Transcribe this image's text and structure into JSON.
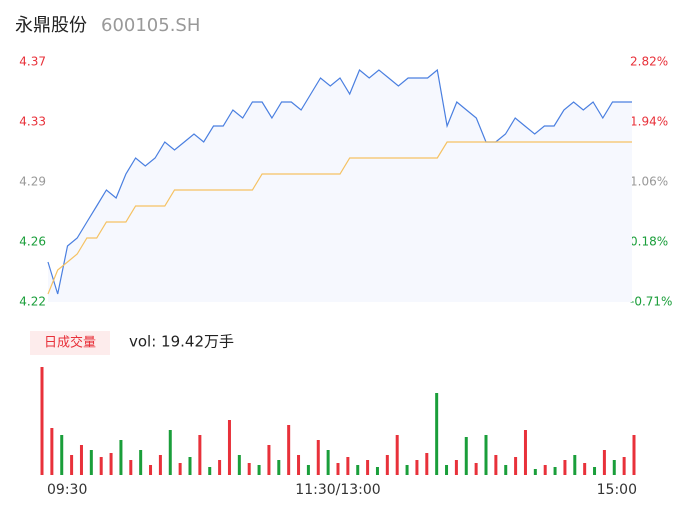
{
  "header": {
    "name": "永鼎股份",
    "code": "600105.SH"
  },
  "chart_data": [
    {
      "type": "line",
      "series": [
        {
          "color": "#4a7fe0",
          "fill": "#f6f8fe",
          "values": [
            4.245,
            4.225,
            4.255,
            4.26,
            4.27,
            4.28,
            4.29,
            4.285,
            4.3,
            4.31,
            4.305,
            4.31,
            4.32,
            4.315,
            4.32,
            4.325,
            4.32,
            4.33,
            4.33,
            4.34,
            4.335,
            4.345,
            4.345,
            4.335,
            4.345,
            4.345,
            4.34,
            4.35,
            4.36,
            4.355,
            4.36,
            4.35,
            4.365,
            4.36,
            4.365,
            4.36,
            4.355,
            4.36,
            4.36,
            4.36,
            4.365,
            4.33,
            4.345,
            4.34,
            4.335,
            4.32,
            4.32,
            4.325,
            4.335,
            4.33,
            4.325,
            4.33,
            4.33,
            4.34,
            4.345,
            4.34,
            4.345,
            4.335,
            4.345,
            4.345,
            4.345
          ]
        },
        {
          "color": "#f5c263",
          "values": [
            4.225,
            4.24,
            4.245,
            4.25,
            4.26,
            4.26,
            4.27,
            4.27,
            4.27,
            4.28,
            4.28,
            4.28,
            4.28,
            4.29,
            4.29,
            4.29,
            4.29,
            4.29,
            4.29,
            4.29,
            4.29,
            4.29,
            4.3,
            4.3,
            4.3,
            4.3,
            4.3,
            4.3,
            4.3,
            4.3,
            4.3,
            4.31,
            4.31,
            4.31,
            4.31,
            4.31,
            4.31,
            4.31,
            4.31,
            4.31,
            4.31,
            4.32,
            4.32,
            4.32,
            4.32,
            4.32,
            4.32,
            4.32,
            4.32,
            4.32,
            4.32,
            4.32,
            4.32,
            4.32,
            4.32,
            4.32,
            4.32,
            4.32,
            4.32,
            4.32,
            4.32
          ]
        }
      ],
      "ylim": [
        4.22,
        4.37
      ],
      "yticks": [
        {
          "value": 4.22,
          "label": "4.22"
        },
        {
          "value": 4.2575,
          "label": "4.26"
        },
        {
          "value": 4.295,
          "label": "4.29"
        },
        {
          "value": 4.3325,
          "label": "4.33"
        },
        {
          "value": 4.37,
          "label": "4.37"
        }
      ],
      "y2lim": [
        -0.71,
        2.82
      ],
      "y2ticks": [
        {
          "value": -0.71,
          "label": "-0.71%"
        },
        {
          "value": 0.1725,
          "label": "0.18%"
        },
        {
          "value": 1.055,
          "label": "1.06%"
        },
        {
          "value": 1.9375,
          "label": "1.94%"
        },
        {
          "value": 2.82,
          "label": "2.82%"
        }
      ]
    },
    {
      "type": "bar",
      "label": "日成交量",
      "annotation": "vol: 19.42万手",
      "categories": [
        "09:30",
        null,
        null,
        null,
        null,
        null,
        null,
        null,
        null,
        null,
        null,
        null,
        null,
        null,
        null,
        null,
        null,
        null,
        null,
        null,
        null,
        null,
        null,
        null,
        null,
        null,
        null,
        null,
        null,
        null,
        "11:30/13:00",
        null,
        null,
        null,
        null,
        null,
        null,
        null,
        null,
        null,
        null,
        null,
        null,
        null,
        null,
        null,
        null,
        null,
        null,
        null,
        null,
        null,
        null,
        null,
        null,
        null,
        null,
        null,
        null,
        null,
        "15:00"
      ],
      "values": [
        108,
        47,
        40,
        20,
        30,
        25,
        18,
        22,
        35,
        15,
        25,
        10,
        20,
        45,
        12,
        18,
        40,
        8,
        15,
        55,
        20,
        12,
        10,
        30,
        15,
        50,
        20,
        10,
        35,
        25,
        12,
        18,
        10,
        15,
        8,
        20,
        40,
        10,
        15,
        22,
        82,
        10,
        15,
        38,
        12,
        40,
        20,
        10,
        18,
        45,
        6,
        10,
        8,
        15,
        20,
        12,
        8,
        25,
        15,
        18,
        40
      ],
      "colors": [
        "#e8313a",
        "#e8313a",
        "#1a9e3a",
        "#e8313a",
        "#e8313a",
        "#1a9e3a",
        "#e8313a",
        "#e8313a",
        "#1a9e3a",
        "#e8313a",
        "#1a9e3a",
        "#e8313a",
        "#e8313a",
        "#1a9e3a",
        "#e8313a",
        "#1a9e3a",
        "#e8313a",
        "#1a9e3a",
        "#e8313a",
        "#e8313a",
        "#1a9e3a",
        "#e8313a",
        "#1a9e3a",
        "#e8313a",
        "#1a9e3a",
        "#e8313a",
        "#e8313a",
        "#1a9e3a",
        "#e8313a",
        "#1a9e3a",
        "#e8313a",
        "#e8313a",
        "#1a9e3a",
        "#e8313a",
        "#1a9e3a",
        "#e8313a",
        "#e8313a",
        "#1a9e3a",
        "#e8313a",
        "#e8313a",
        "#1a9e3a",
        "#1a9e3a",
        "#e8313a",
        "#1a9e3a",
        "#e8313a",
        "#1a9e3a",
        "#e8313a",
        "#1a9e3a",
        "#e8313a",
        "#e8313a",
        "#1a9e3a",
        "#e8313a",
        "#1a9e3a",
        "#e8313a",
        "#1a9e3a",
        "#e8313a",
        "#1a9e3a",
        "#e8313a",
        "#1a9e3a",
        "#e8313a",
        "#e8313a"
      ],
      "ylim": [
        0,
        110
      ]
    }
  ]
}
